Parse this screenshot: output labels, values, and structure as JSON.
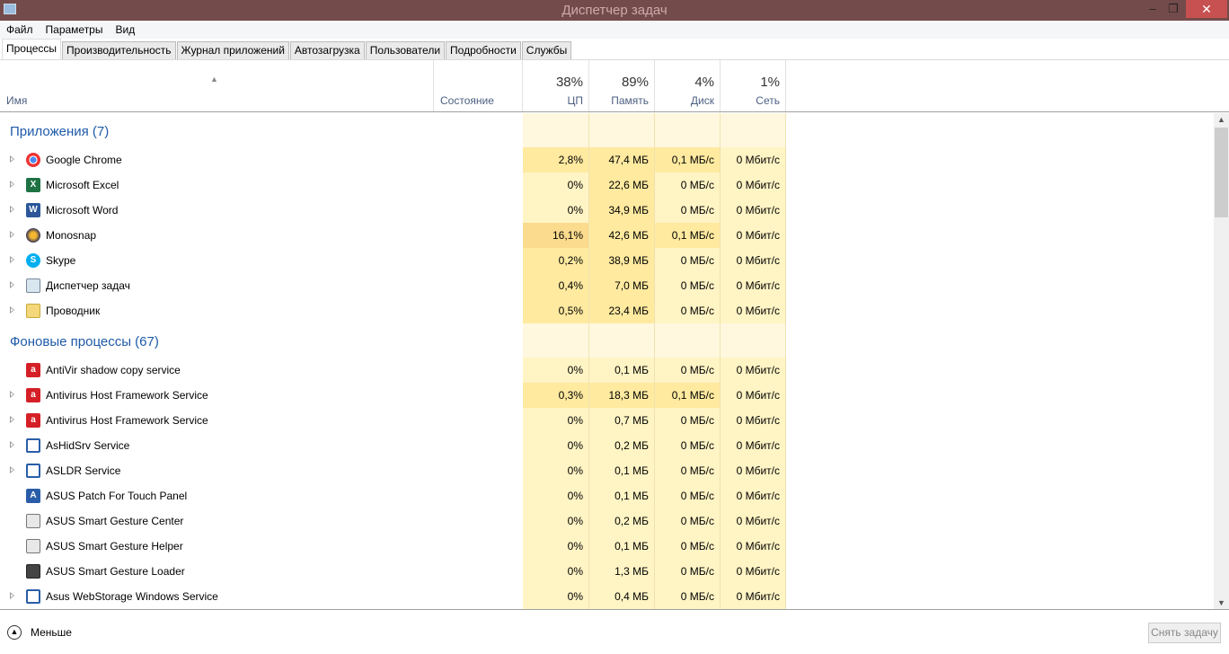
{
  "window": {
    "title": "Диспетчер задач",
    "minimize": "–",
    "maximize": "❐",
    "close": "✕"
  },
  "menu": [
    "Файл",
    "Параметры",
    "Вид"
  ],
  "tabs": [
    "Процессы",
    "Производительность",
    "Журнал приложений",
    "Автозагрузка",
    "Пользователи",
    "Подробности",
    "Службы"
  ],
  "columns": {
    "name": "Имя",
    "status": "Состояние",
    "cpu": {
      "pct": "38%",
      "label": "ЦП"
    },
    "mem": {
      "pct": "89%",
      "label": "Память"
    },
    "disk": {
      "pct": "4%",
      "label": "Диск"
    },
    "net": {
      "pct": "1%",
      "label": "Сеть"
    }
  },
  "colors": {
    "heat_light": "#fff4c4",
    "heat_medium": "#ffeaa0",
    "heat_strong": "#fbdc8e",
    "group_title": "#1e5aa8",
    "titlebar": "#744b4b",
    "close": "#c75050"
  },
  "groups": [
    {
      "title": "Приложения (7)",
      "rows": [
        {
          "name": "Google Chrome",
          "icon": "chrome-icon",
          "exp": true,
          "v": [
            "2,8%",
            "47,4 МБ",
            "0,1 МБ/с",
            "0 Мбит/с"
          ],
          "heat": [
            1,
            1,
            1,
            0
          ]
        },
        {
          "name": "Microsoft Excel",
          "icon": "excel-icon",
          "exp": true,
          "v": [
            "0%",
            "22,6 МБ",
            "0 МБ/с",
            "0 Мбит/с"
          ],
          "heat": [
            0,
            1,
            0,
            0
          ]
        },
        {
          "name": "Microsoft Word",
          "icon": "word-icon",
          "exp": true,
          "v": [
            "0%",
            "34,9 МБ",
            "0 МБ/с",
            "0 Мбит/с"
          ],
          "heat": [
            0,
            1,
            0,
            0
          ]
        },
        {
          "name": "Monosnap",
          "icon": "monosnap-icon",
          "exp": true,
          "v": [
            "16,1%",
            "42,6 МБ",
            "0,1 МБ/с",
            "0 Мбит/с"
          ],
          "heat": [
            2,
            1,
            1,
            0
          ]
        },
        {
          "name": "Skype",
          "icon": "skype-icon",
          "exp": true,
          "v": [
            "0,2%",
            "38,9 МБ",
            "0 МБ/с",
            "0 Мбит/с"
          ],
          "heat": [
            1,
            1,
            0,
            0
          ]
        },
        {
          "name": "Диспетчер задач",
          "icon": "task-manager-icon",
          "exp": true,
          "v": [
            "0,4%",
            "7,0 МБ",
            "0 МБ/с",
            "0 Мбит/с"
          ],
          "heat": [
            1,
            1,
            0,
            0
          ]
        },
        {
          "name": "Проводник",
          "icon": "explorer-icon",
          "exp": true,
          "v": [
            "0,5%",
            "23,4 МБ",
            "0 МБ/с",
            "0 Мбит/с"
          ],
          "heat": [
            1,
            1,
            0,
            0
          ]
        }
      ]
    },
    {
      "title": "Фоновые процессы (67)",
      "rows": [
        {
          "name": "AntiVir shadow copy service",
          "icon": "avira-icon",
          "exp": false,
          "v": [
            "0%",
            "0,1 МБ",
            "0 МБ/с",
            "0 Мбит/с"
          ],
          "heat": [
            0,
            0,
            0,
            0
          ]
        },
        {
          "name": "Antivirus Host Framework Service",
          "icon": "avira-icon",
          "exp": true,
          "v": [
            "0,3%",
            "18,3 МБ",
            "0,1 МБ/с",
            "0 Мбит/с"
          ],
          "heat": [
            1,
            1,
            1,
            0
          ]
        },
        {
          "name": "Antivirus Host Framework Service",
          "icon": "avira-icon",
          "exp": true,
          "v": [
            "0%",
            "0,7 МБ",
            "0 МБ/с",
            "0 Мбит/с"
          ],
          "heat": [
            0,
            0,
            0,
            0
          ]
        },
        {
          "name": "AsHidSrv Service",
          "icon": "window-icon",
          "exp": true,
          "v": [
            "0%",
            "0,2 МБ",
            "0 МБ/с",
            "0 Мбит/с"
          ],
          "heat": [
            0,
            0,
            0,
            0
          ]
        },
        {
          "name": "ASLDR Service",
          "icon": "window-icon",
          "exp": true,
          "v": [
            "0%",
            "0,1 МБ",
            "0 МБ/с",
            "0 Мбит/с"
          ],
          "heat": [
            0,
            0,
            0,
            0
          ]
        },
        {
          "name": "ASUS Patch For Touch Panel",
          "icon": "asus-icon",
          "exp": false,
          "v": [
            "0%",
            "0,1 МБ",
            "0 МБ/с",
            "0 Мбит/с"
          ],
          "heat": [
            0,
            0,
            0,
            0
          ]
        },
        {
          "name": "ASUS Smart Gesture Center",
          "icon": "gesture-icon",
          "exp": false,
          "v": [
            "0%",
            "0,2 МБ",
            "0 МБ/с",
            "0 Мбит/с"
          ],
          "heat": [
            0,
            0,
            0,
            0
          ]
        },
        {
          "name": "ASUS Smart Gesture Helper",
          "icon": "gesture-icon",
          "exp": false,
          "v": [
            "0%",
            "0,1 МБ",
            "0 МБ/с",
            "0 Мбит/с"
          ],
          "heat": [
            0,
            0,
            0,
            0
          ]
        },
        {
          "name": "ASUS Smart Gesture Loader",
          "icon": "loader-icon",
          "exp": false,
          "v": [
            "0%",
            "1,3 МБ",
            "0 МБ/с",
            "0 Мбит/с"
          ],
          "heat": [
            0,
            0,
            0,
            0
          ]
        },
        {
          "name": "Asus WebStorage Windows Service",
          "icon": "window-icon",
          "exp": true,
          "v": [
            "0%",
            "0,4 МБ",
            "0 МБ/с",
            "0 Мбит/с"
          ],
          "heat": [
            0,
            0,
            0,
            0
          ]
        }
      ]
    }
  ],
  "footer": {
    "less": "Меньше",
    "end_task": "Снять задачу"
  }
}
